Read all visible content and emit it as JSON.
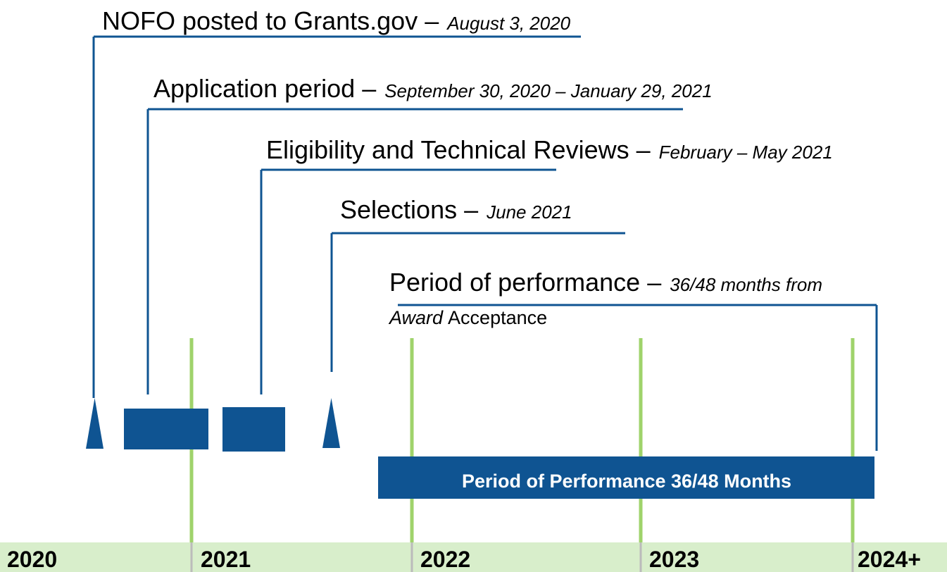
{
  "milestones": [
    {
      "label": "NOFO posted to Grants.gov –",
      "detail": "August 3, 2020"
    },
    {
      "label": "Application period –",
      "detail": "September 30, 2020 – January 29, 2021"
    },
    {
      "label": "Eligibility and Technical Reviews –",
      "detail": "February – May 2021"
    },
    {
      "label": "Selections –",
      "detail": "June 2021"
    },
    {
      "label": "Period of performance –",
      "detail": "36/48 months from",
      "line2_italic": "Award",
      "line2": "Acceptance"
    }
  ],
  "bar_label": "Period of Performance 36/48 Months",
  "years": [
    "2020",
    "2021",
    "2022",
    "2023",
    "2024+"
  ]
}
